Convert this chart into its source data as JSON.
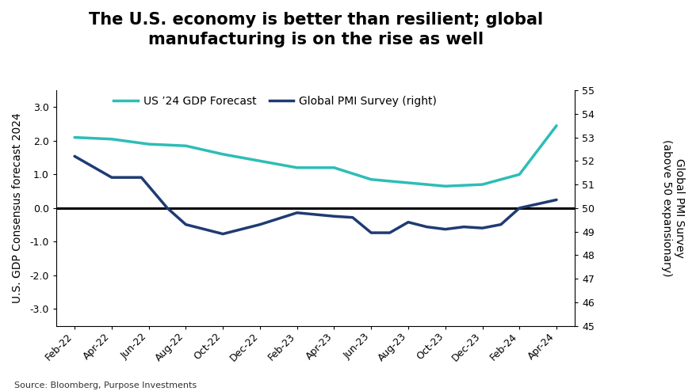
{
  "title": "The U.S. economy is better than resilient; global\nmanufacturing is on the rise as well",
  "source": "Source: Bloomberg, Purpose Investments",
  "x_labels": [
    "Feb-22",
    "Apr-22",
    "Jun-22",
    "Aug-22",
    "Oct-22",
    "Dec-22",
    "Feb-23",
    "Apr-23",
    "Jun-23",
    "Aug-23",
    "Oct-23",
    "Dec-23",
    "Feb-24",
    "Apr-24"
  ],
  "gdp_data": [
    [
      0,
      2.1
    ],
    [
      1,
      2.05
    ],
    [
      2,
      1.9
    ],
    [
      3,
      1.85
    ],
    [
      4,
      1.6
    ],
    [
      5,
      1.4
    ],
    [
      6,
      1.2
    ],
    [
      7,
      1.2
    ],
    [
      8,
      0.85
    ],
    [
      9,
      0.75
    ],
    [
      10,
      0.65
    ],
    [
      11,
      0.7
    ],
    [
      12,
      1.0
    ],
    [
      13,
      2.45
    ]
  ],
  "pmi_data": [
    [
      0,
      52.2
    ],
    [
      1,
      51.3
    ],
    [
      1.8,
      51.3
    ],
    [
      2.5,
      50.0
    ],
    [
      3,
      49.3
    ],
    [
      4,
      48.9
    ],
    [
      5,
      49.3
    ],
    [
      6,
      49.8
    ],
    [
      7,
      49.65
    ],
    [
      7.5,
      49.6
    ],
    [
      8,
      48.95
    ],
    [
      8.5,
      48.95
    ],
    [
      9,
      49.4
    ],
    [
      9.5,
      49.2
    ],
    [
      10,
      49.1
    ],
    [
      10.5,
      49.2
    ],
    [
      11,
      49.15
    ],
    [
      11.5,
      49.3
    ],
    [
      12,
      50.0
    ],
    [
      13,
      50.35
    ]
  ],
  "gdp_color": "#2DBDB6",
  "pmi_color": "#1F3B73",
  "ylabel_left": "U.S. GDP Consensus forecast 2024",
  "ylabel_right": "Global PMI Survey\n(above 50 expansionary)",
  "ylim_left": [
    -3.5,
    3.5
  ],
  "ylim_right": [
    45,
    55
  ],
  "yticks_left": [
    -3.0,
    -2.0,
    -1.0,
    0.0,
    1.0,
    2.0,
    3.0
  ],
  "yticks_right": [
    45,
    46,
    47,
    48,
    49,
    50,
    51,
    52,
    53,
    54,
    55
  ],
  "background_color": "#FFFFFF",
  "hline_color": "#000000",
  "legend_gdp": "US ’24 GDP Forecast",
  "legend_pmi": "Global PMI Survey (right)",
  "title_fontsize": 15,
  "axis_fontsize": 10,
  "tick_fontsize": 9,
  "legend_fontsize": 10
}
